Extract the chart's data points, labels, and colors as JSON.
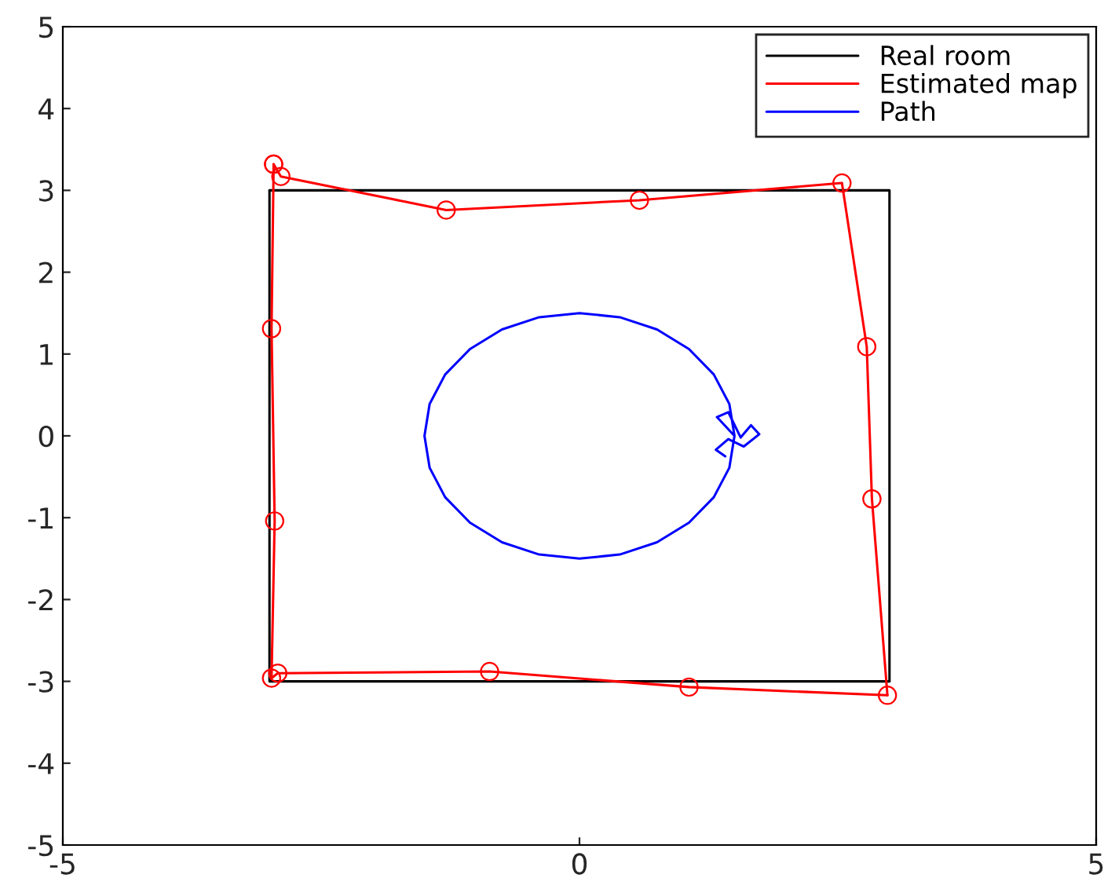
{
  "chart_data": {
    "type": "line",
    "xlim": [
      -5,
      5
    ],
    "ylim": [
      -5,
      5
    ],
    "xticks": [
      -5,
      0,
      5
    ],
    "yticks": [
      -5,
      -4,
      -3,
      -2,
      -1,
      0,
      1,
      2,
      3,
      4,
      5
    ],
    "grid": false,
    "legend": "top right",
    "series": [
      {
        "name": "Real room",
        "color": "#000000",
        "marker": "none",
        "x": [
          -3,
          3,
          3,
          -3,
          -3
        ],
        "values": [
          3,
          3,
          -3,
          -3,
          3
        ]
      },
      {
        "name": "Estimated map",
        "color": "#ff0000",
        "marker": "circle",
        "x": [
          -2.96,
          -2.89,
          -1.29,
          0.58,
          2.54,
          2.78,
          2.83,
          2.98,
          1.06,
          -0.87,
          -2.92,
          -2.98,
          -2.95,
          -2.98,
          -2.96
        ],
        "values": [
          3.32,
          3.17,
          2.76,
          2.88,
          3.09,
          1.09,
          -0.77,
          -3.17,
          -3.07,
          -2.88,
          -2.9,
          -2.96,
          -1.04,
          1.31,
          3.32
        ]
      },
      {
        "name": "Path",
        "color": "#0000ff",
        "marker": "none",
        "x": [
          1.5,
          1.45,
          1.3,
          1.06,
          0.75,
          0.39,
          0,
          -0.39,
          -0.75,
          -1.06,
          -1.3,
          -1.45,
          -1.5,
          -1.45,
          -1.3,
          -1.06,
          -0.75,
          -0.39,
          0,
          0.39,
          0.75,
          1.06,
          1.3,
          1.45,
          1.5,
          1.33,
          1.44,
          1.56,
          1.66,
          1.74,
          1.59,
          1.44,
          1.32,
          1.41
        ],
        "values": [
          0,
          0.39,
          0.75,
          1.06,
          1.3,
          1.45,
          1.5,
          1.45,
          1.3,
          1.06,
          0.75,
          0.39,
          0,
          -0.39,
          -0.75,
          -1.06,
          -1.3,
          -1.45,
          -1.5,
          -1.45,
          -1.3,
          -1.06,
          -0.75,
          -0.39,
          0,
          0.23,
          0.29,
          -0.02,
          0.13,
          0.02,
          -0.13,
          -0.04,
          -0.17,
          -0.25
        ]
      }
    ]
  }
}
